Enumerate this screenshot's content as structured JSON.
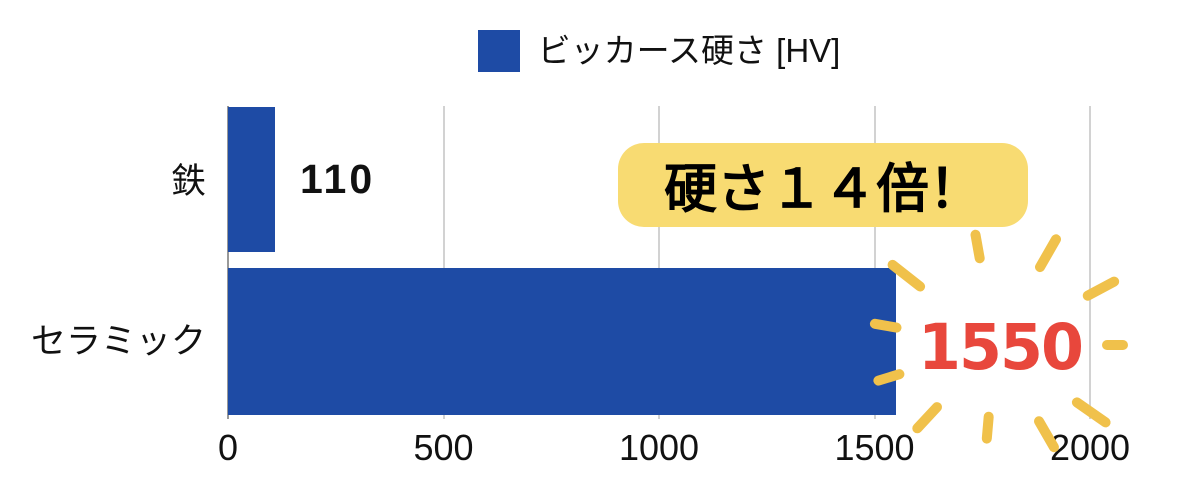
{
  "colors": {
    "bar_blue": "#1E4BA5",
    "badge_yellow": "#F8DB72",
    "burst_yellow": "#F0C14B",
    "value_red": "#E8473C",
    "gridline": "#D2D2D2",
    "axis_line": "#999999"
  },
  "legend": {
    "label": "ビッカース硬さ [HV]"
  },
  "chart_data": {
    "type": "bar",
    "orientation": "horizontal",
    "title": "",
    "xlabel": "",
    "ylabel": "",
    "categories": [
      "鉄",
      "セラミック"
    ],
    "series_name": "ビッカース硬さ [HV]",
    "values": [
      110,
      1550
    ],
    "data_labels": [
      "110",
      "1550"
    ],
    "xlim": [
      0,
      2000
    ],
    "x_ticks": [
      0,
      500,
      1000,
      1500,
      2000
    ],
    "grid": true,
    "legend_position": "top-center"
  },
  "annotations": {
    "badge_text": "硬さ１４倍！"
  }
}
